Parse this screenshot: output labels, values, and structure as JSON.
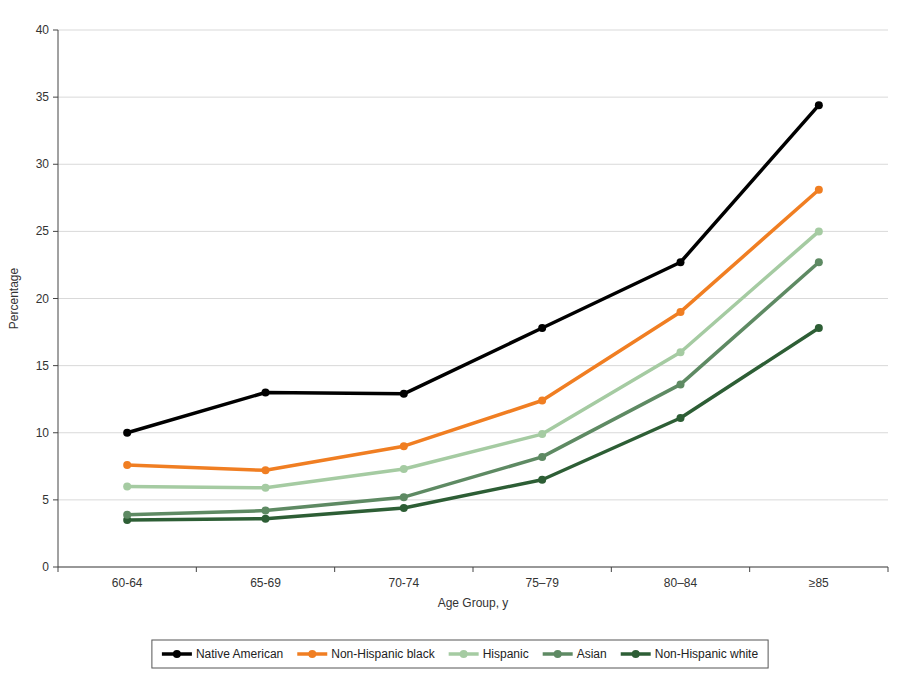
{
  "chart_data": {
    "type": "line",
    "x_label": "Age Group, y",
    "y_label": "Percentage",
    "categories": [
      "60-64",
      "65-69",
      "70-74",
      "75–79",
      "80–84",
      "≥85"
    ],
    "series": [
      {
        "name": "Native American",
        "color": "#000000",
        "values": [
          10.0,
          13.0,
          12.9,
          17.8,
          22.7,
          34.4
        ]
      },
      {
        "name": "Non-Hispanic black",
        "color": "#f07e22",
        "values": [
          7.6,
          7.2,
          9.0,
          12.4,
          19.0,
          28.1
        ]
      },
      {
        "name": "Hispanic",
        "color": "#a5cba2",
        "values": [
          6.0,
          5.9,
          7.3,
          9.9,
          16.0,
          25.0
        ]
      },
      {
        "name": "Asian",
        "color": "#5e8a63",
        "values": [
          3.9,
          4.2,
          5.2,
          8.2,
          13.6,
          22.7
        ]
      },
      {
        "name": "Non-Hispanic white",
        "color": "#2d5e35",
        "values": [
          3.5,
          3.6,
          4.4,
          6.5,
          11.1,
          17.8
        ]
      }
    ],
    "ylim": [
      0,
      40
    ],
    "yticks": [
      0,
      5,
      10,
      15,
      20,
      25,
      30,
      35,
      40
    ],
    "grid": true,
    "legend": "bottom",
    "marker": "circle"
  }
}
